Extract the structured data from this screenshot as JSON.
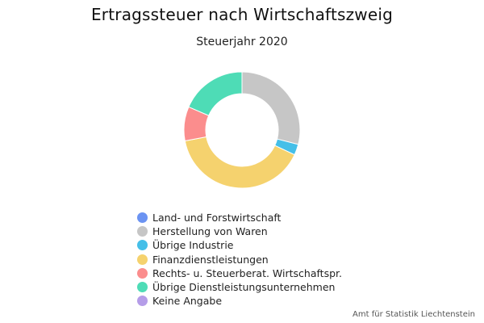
{
  "chart_data": {
    "type": "pie",
    "variant": "donut",
    "title": "Ertragssteuer nach Wirtschaftszweig",
    "subtitle": "Steuerjahr 2020",
    "source": "Amt für Statistik Liechtenstein",
    "legend_position": "bottom",
    "unit": "percent",
    "categories": [
      "Land- und Forstwirtschaft",
      "Herstellung von Waren",
      "Übrige Industrie",
      "Finanzdienstleistungen",
      "Rechts- u. Steuerberat. Wirtschaftspr.",
      "Übrige Dienstleistungsunternehmen",
      "Keine Angabe"
    ],
    "values": [
      0.0,
      29.0,
      3.0,
      40.0,
      9.5,
      18.5,
      0.0
    ],
    "colors": [
      "#6b93f2",
      "#c6c6c6",
      "#45bfe8",
      "#f5d26e",
      "#fb8d8d",
      "#4edcb6",
      "#b59de8"
    ]
  }
}
